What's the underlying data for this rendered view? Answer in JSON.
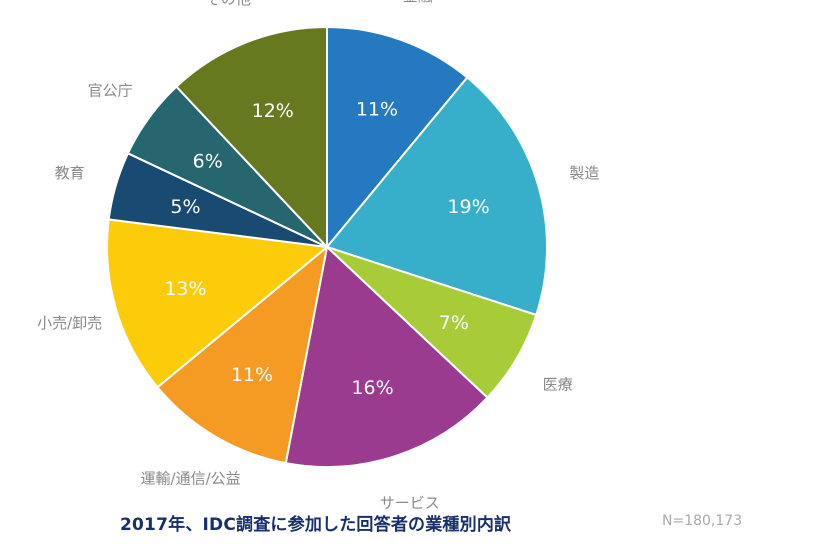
{
  "chart_data": {
    "type": "pie",
    "title": "2017年、IDC調査に参加した回答者の業種別内訳",
    "note": "N=180,173",
    "unit": "%",
    "slices": [
      {
        "label": "金融",
        "value": 11,
        "pct_label": "11%",
        "color": "#2579c0"
      },
      {
        "label": "製造",
        "value": 19,
        "pct_label": "19%",
        "color": "#37afca"
      },
      {
        "label": "医療",
        "value": 7,
        "pct_label": "7%",
        "color": "#a7cc38"
      },
      {
        "label": "サービス",
        "value": 16,
        "pct_label": "16%",
        "color": "#9a3b8f"
      },
      {
        "label": "運輸/通信/公益",
        "value": 11,
        "pct_label": "11%",
        "color": "#f59a23"
      },
      {
        "label": "小売/卸売",
        "value": 13,
        "pct_label": "13%",
        "color": "#fccb0a"
      },
      {
        "label": "教育",
        "value": 5,
        "pct_label": "5%",
        "color": "#184a72"
      },
      {
        "label": "官公庁",
        "value": 6,
        "pct_label": "6%",
        "color": "#25666f"
      },
      {
        "label": "その他",
        "value": 12,
        "pct_label": "12%",
        "color": "#67791f"
      }
    ]
  }
}
